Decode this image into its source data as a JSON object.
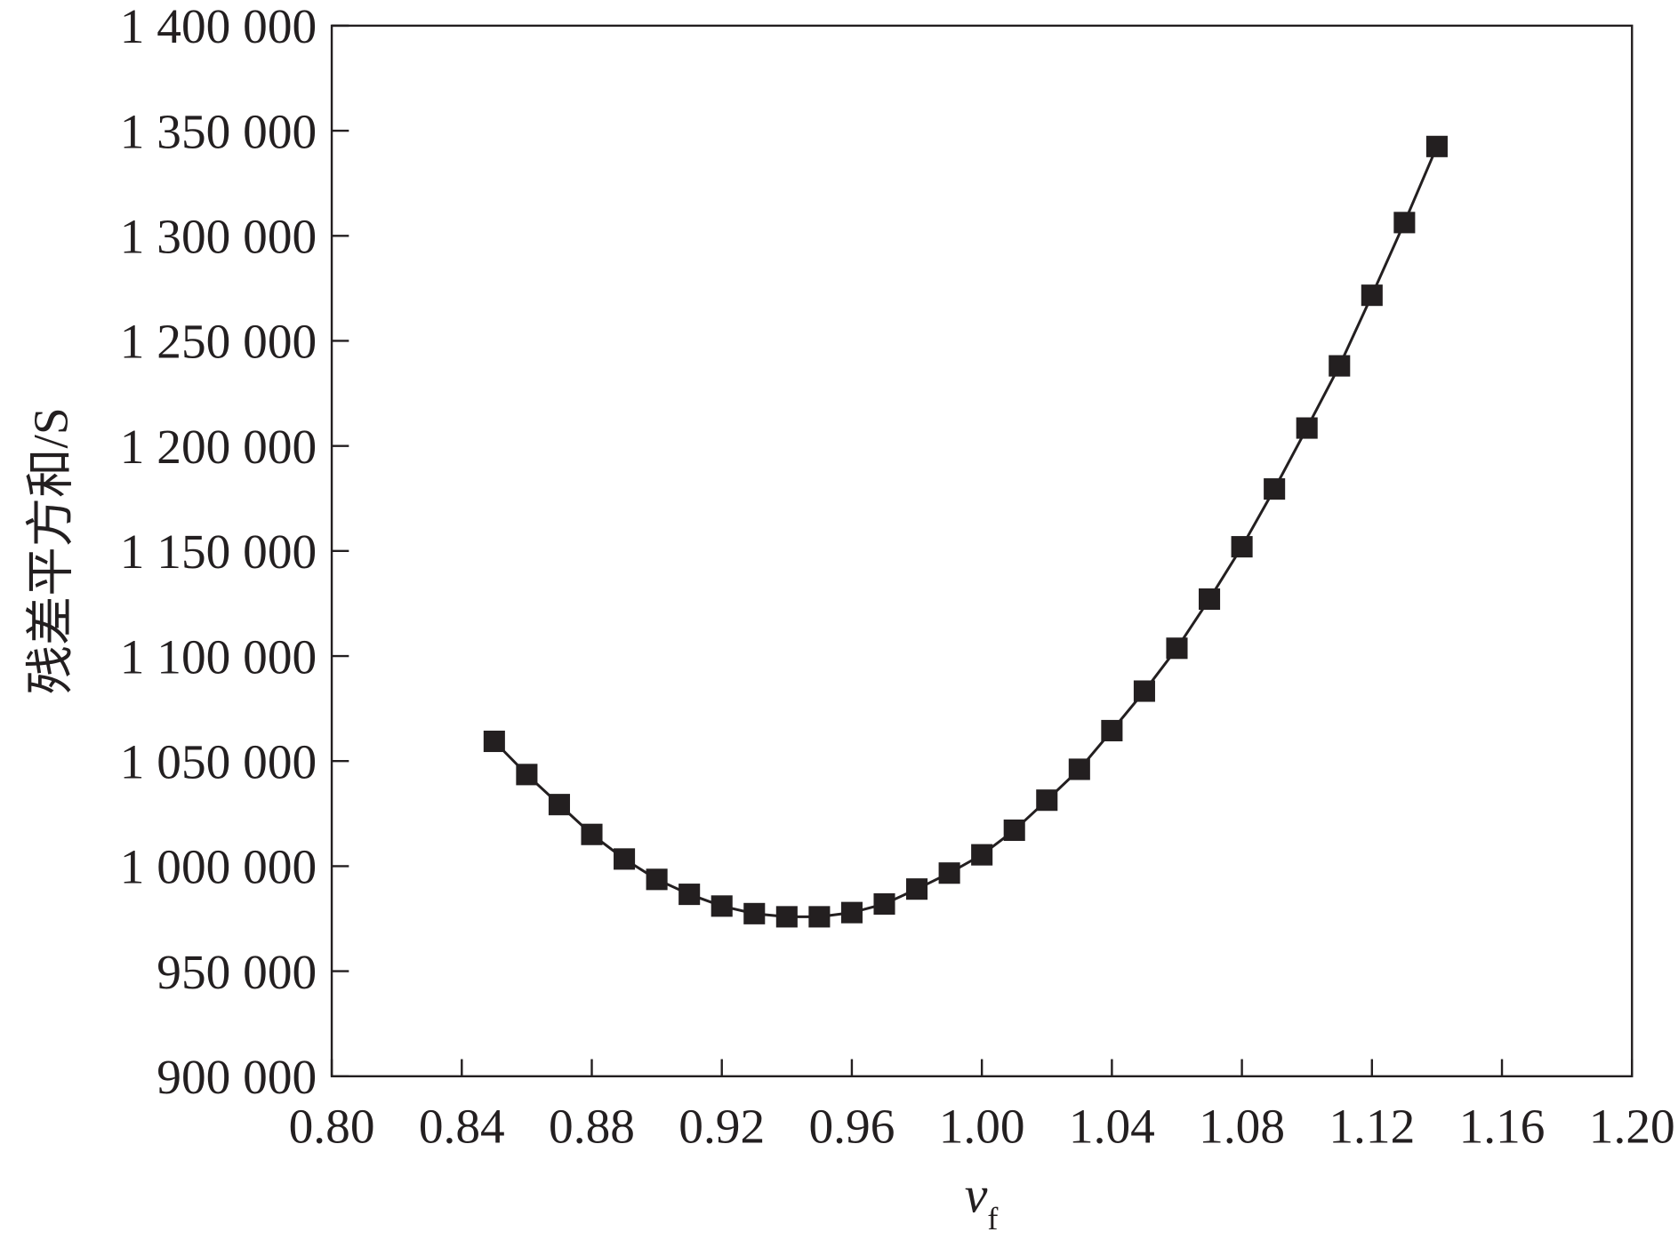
{
  "chart_data": {
    "type": "line",
    "y_label": "残差平方和/S",
    "x_label": {
      "text": "v",
      "subscript": "f"
    },
    "x": [
      0.85,
      0.86,
      0.87,
      0.88,
      0.89,
      0.9,
      0.91,
      0.92,
      0.93,
      0.94,
      0.95,
      0.96,
      0.97,
      0.98,
      0.99,
      1.0,
      1.01,
      1.02,
      1.03,
      1.04,
      1.05,
      1.06,
      1.07,
      1.08,
      1.09,
      1.1,
      1.11,
      1.12,
      1.13,
      1.14
    ],
    "series": [
      {
        "color": "#231f20",
        "marker": "square",
        "values": [
          1059400,
          1043600,
          1029300,
          1015100,
          1003400,
          993700,
          986600,
          981000,
          977400,
          975900,
          975900,
          977900,
          982000,
          989100,
          996700,
          1005400,
          1017100,
          1031400,
          1046100,
          1064500,
          1083300,
          1103700,
          1127100,
          1152000,
          1179500,
          1208500,
          1238100,
          1271700,
          1306300,
          1342500
        ]
      }
    ],
    "xlim": [
      0.8,
      1.2
    ],
    "xticks": [
      {
        "value": 0.8,
        "label": "0.80"
      },
      0.84,
      0.88,
      0.92,
      0.96,
      {
        "value": 1.0,
        "label": "1.00"
      },
      1.04,
      1.08,
      1.12,
      1.16,
      {
        "value": 1.2,
        "label": "1.20"
      }
    ],
    "ylim": [
      900000,
      1400000
    ],
    "yticks": [
      {
        "value": 900000,
        "label": "900 000"
      },
      {
        "value": 950000,
        "label": "950 000"
      },
      {
        "value": 1000000,
        "label": "1 000 000"
      },
      {
        "value": 1050000,
        "label": "1 050 000"
      },
      {
        "value": 1100000,
        "label": "1 100 000"
      },
      {
        "value": 1150000,
        "label": "1 150 000"
      },
      {
        "value": 1200000,
        "label": "1 200 000"
      },
      {
        "value": 1250000,
        "label": "1 250 000"
      },
      {
        "value": 1300000,
        "label": "1 300 000"
      },
      {
        "value": 1350000,
        "label": "1 350 000"
      },
      {
        "value": 1400000,
        "label": "1 400 000"
      }
    ],
    "grid": false
  }
}
